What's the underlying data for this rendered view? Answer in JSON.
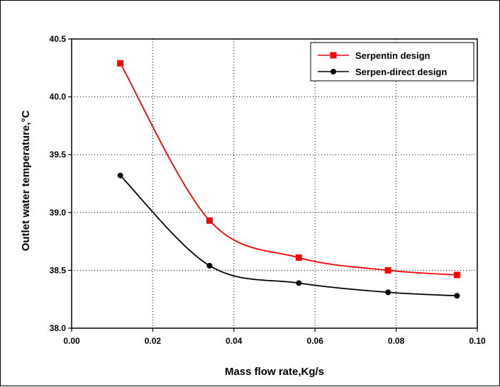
{
  "chart_data": {
    "type": "line",
    "title": "",
    "xlabel": "Mass flow rate,Kg/s",
    "ylabel": "Outlet water temperature,°C",
    "xlim": [
      0.0,
      0.1
    ],
    "ylim": [
      38.0,
      40.5
    ],
    "xticks": [
      "0.00",
      "0.02",
      "0.04",
      "0.06",
      "0.08",
      "0.10"
    ],
    "yticks": [
      "38.0",
      "38.5",
      "39.0",
      "39.5",
      "40.0",
      "40.5"
    ],
    "grid": "dotted",
    "legend_position": "top-right",
    "x": [
      0.012,
      0.034,
      0.056,
      0.078,
      0.095
    ],
    "series": [
      {
        "name": "Serpentin design",
        "color": "#ff0000",
        "marker": "square",
        "values": [
          40.29,
          38.93,
          38.61,
          38.5,
          38.46
        ]
      },
      {
        "name": "Serpen-direct design",
        "color": "#000000",
        "marker": "circle",
        "values": [
          39.32,
          38.54,
          38.39,
          38.31,
          38.28
        ]
      }
    ]
  }
}
